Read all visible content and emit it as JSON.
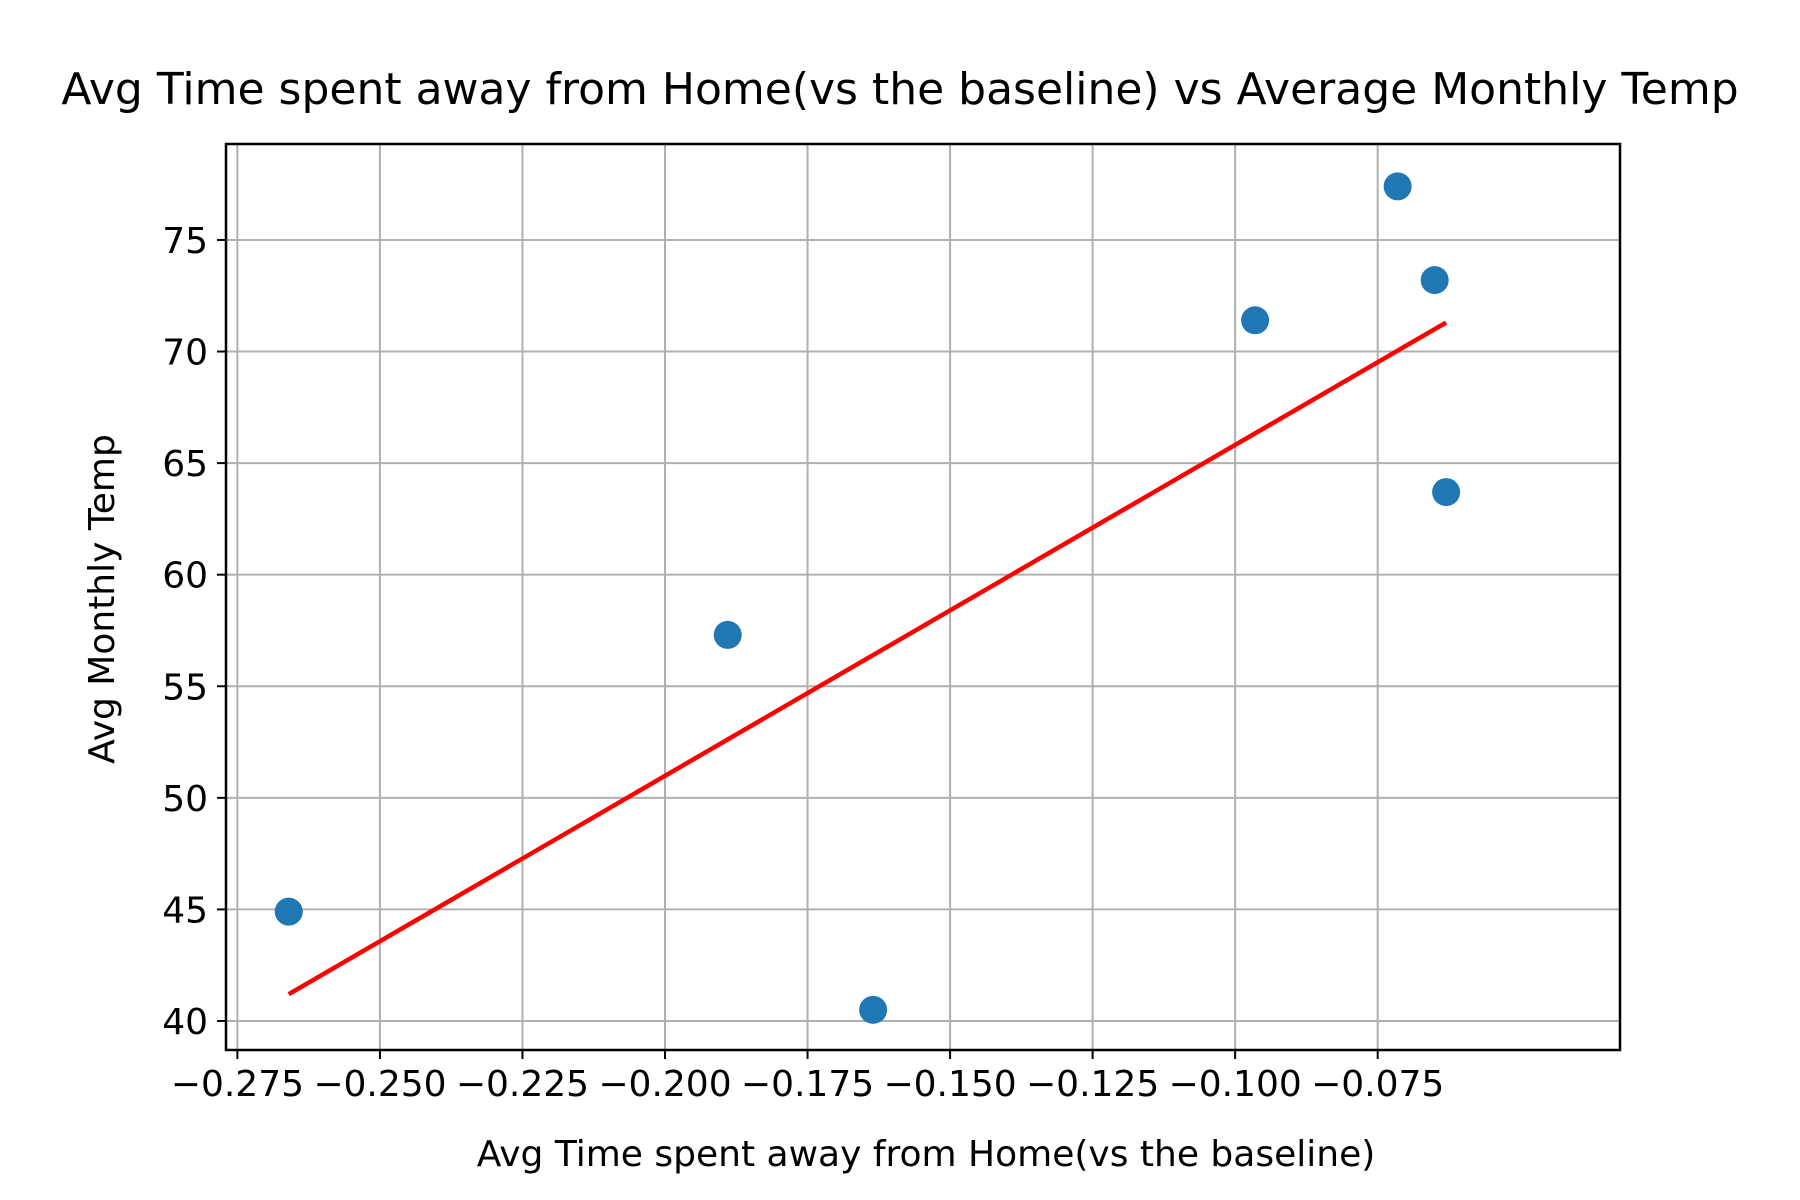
{
  "chart_data": {
    "type": "scatter",
    "title": "Avg Time spent away from Home(vs the baseline) vs Average Monthly Temp",
    "xlabel": "Avg Time spent away from Home(vs the baseline)",
    "ylabel": "Avg Monthly Temp",
    "xlim": [
      -0.277,
      -0.0325
    ],
    "ylim": [
      38.7,
      79.3
    ],
    "xticks": [
      -0.275,
      -0.25,
      -0.225,
      -0.2,
      -0.175,
      -0.15,
      -0.125,
      -0.1,
      -0.075
    ],
    "xtick_labels": [
      "−0.275",
      "−0.250",
      "−0.225",
      "−0.200",
      "−0.175",
      "−0.150",
      "−0.125",
      "−0.100",
      "−0.075"
    ],
    "yticks": [
      40,
      45,
      50,
      55,
      60,
      65,
      70,
      75
    ],
    "ytick_labels": [
      "40",
      "45",
      "50",
      "55",
      "60",
      "65",
      "70",
      "75"
    ],
    "grid": true,
    "points": [
      {
        "x": -0.266,
        "y": 44.9
      },
      {
        "x": -0.189,
        "y": 57.3
      },
      {
        "x": -0.1635,
        "y": 40.5
      },
      {
        "x": -0.0965,
        "y": 71.4
      },
      {
        "x": -0.0715,
        "y": 77.4
      },
      {
        "x": -0.065,
        "y": 73.2
      },
      {
        "x": -0.063,
        "y": 63.7
      }
    ],
    "point_color": "#1f77b4",
    "fit_line": {
      "x": [
        -0.266,
        -0.063
      ],
      "y": [
        41.2,
        71.3
      ],
      "color": "#ff0000"
    }
  }
}
